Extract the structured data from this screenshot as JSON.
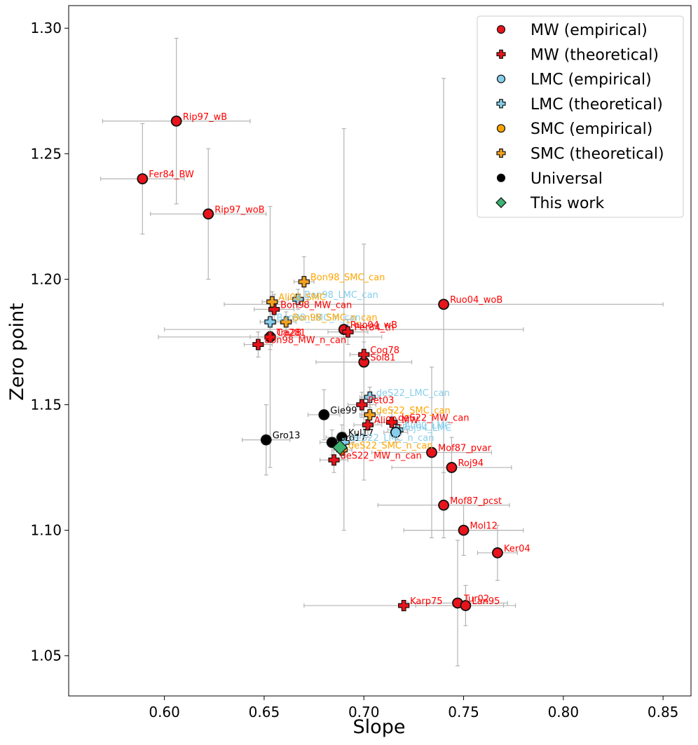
{
  "chart_data": {
    "type": "scatter",
    "xlabel": "Slope",
    "ylabel": "Zero point",
    "xlim": [
      0.552,
      0.864
    ],
    "ylim": [
      1.034,
      1.309
    ],
    "xticks": [
      0.6,
      0.65,
      0.7,
      0.75,
      0.8,
      0.85
    ],
    "xtick_labels": [
      "0.60",
      "0.65",
      "0.70",
      "0.75",
      "0.80",
      "0.85"
    ],
    "yticks": [
      1.05,
      1.1,
      1.15,
      1.2,
      1.25,
      1.3
    ],
    "ytick_labels": [
      "1.05",
      "1.10",
      "1.15",
      "1.20",
      "1.25",
      "1.30"
    ],
    "grid": false,
    "legend_position": "top-right",
    "legend": [
      {
        "label": "MW (empirical)",
        "series": "mw_emp"
      },
      {
        "label": "MW (theoretical)",
        "series": "mw_theo"
      },
      {
        "label": "LMC (empirical)",
        "series": "lmc_emp"
      },
      {
        "label": "LMC (theoretical)",
        "series": "lmc_theo"
      },
      {
        "label": "SMC (empirical)",
        "series": "smc_emp"
      },
      {
        "label": "SMC (theoretical)",
        "series": "smc_theo"
      },
      {
        "label": "Universal",
        "series": "universal"
      },
      {
        "label": "This work",
        "series": "this_work"
      }
    ],
    "styles": {
      "mw_emp": {
        "marker": "circle",
        "fill": "#e8141b",
        "label_color": "#ff0000"
      },
      "mw_theo": {
        "marker": "plus",
        "fill": "#e8141b",
        "label_color": "#ff0000"
      },
      "lmc_emp": {
        "marker": "circle",
        "fill": "#87ceeb",
        "label_color": "#87ceeb"
      },
      "lmc_theo": {
        "marker": "plus",
        "fill": "#87ceeb",
        "label_color": "#87ceeb"
      },
      "smc_emp": {
        "marker": "circle",
        "fill": "#ffa500",
        "label_color": "#ffa500"
      },
      "smc_theo": {
        "marker": "plus",
        "fill": "#f0a020",
        "label_color": "#ffa500"
      },
      "universal": {
        "marker": "circle",
        "fill": "#000000",
        "label_color": "#000000"
      },
      "this_work": {
        "marker": "diamond",
        "fill": "#3cb371",
        "label_color": "#3cb371"
      }
    },
    "points": [
      {
        "label": "Rip97_wB",
        "series": "mw_emp",
        "x": 0.606,
        "y": 1.263,
        "xerr": 0.037,
        "yerr": 0.033
      },
      {
        "label": "Fer84_BW",
        "series": "mw_emp",
        "x": 0.589,
        "y": 1.24,
        "xerr": 0.021,
        "yerr": 0.022
      },
      {
        "label": "Rip97_woB",
        "series": "mw_emp",
        "x": 0.622,
        "y": 1.226,
        "xerr": 0.029,
        "yerr": 0.026
      },
      {
        "label": "Ruo04_woB",
        "series": "mw_emp",
        "x": 0.74,
        "y": 1.19,
        "xerr": 0.11,
        "yerr": 0.09
      },
      {
        "label": "Ruo04_wB",
        "series": "mw_emp",
        "x": 0.69,
        "y": 1.18,
        "xerr": 0.09,
        "yerr": 0.08
      },
      {
        "label": "Ca281",
        "series": "mw_emp",
        "x": 0.653,
        "y": 1.177,
        "xerr": 0.056,
        "yerr": 0.052
      },
      {
        "label": "Sol81",
        "series": "mw_emp",
        "x": 0.7,
        "y": 1.167,
        "xerr": 0.024,
        "yerr": 0.047
      },
      {
        "label": "Mof87_pvar",
        "series": "mw_emp",
        "x": 0.734,
        "y": 1.131,
        "xerr": 0.03,
        "yerr": 0.034
      },
      {
        "label": "Roj94",
        "series": "mw_emp",
        "x": 0.744,
        "y": 1.125,
        "xerr": 0.03,
        "yerr": 0.012
      },
      {
        "label": "Mof87_pcst",
        "series": "mw_emp",
        "x": 0.74,
        "y": 1.11,
        "xerr": 0.033,
        "yerr": 0.013
      },
      {
        "label": "Mol12",
        "series": "mw_emp",
        "x": 0.75,
        "y": 1.1,
        "xerr": 0.03,
        "yerr": 0.01
      },
      {
        "label": "Ker04",
        "series": "mw_emp",
        "x": 0.767,
        "y": 1.091,
        "xerr": 0.01,
        "yerr": 0.011
      },
      {
        "label": "Tur02",
        "series": "mw_emp",
        "x": 0.747,
        "y": 1.071,
        "xerr": 0.025,
        "yerr": 0.025
      },
      {
        "label": "Lan95",
        "series": "mw_emp",
        "x": 0.751,
        "y": 1.07,
        "xerr": 0.025,
        "yerr": 0.008
      },
      {
        "label": "Bon98_MW_can",
        "series": "mw_theo",
        "x": 0.655,
        "y": 1.188,
        "xerr": 0.01,
        "yerr": 0.006
      },
      {
        "label": "Tra28",
        "series": "mw_theo",
        "x": 0.653,
        "y": 1.177,
        "xerr": 0.01,
        "yerr": 0.005
      },
      {
        "label": "Bon98_MW_n_can",
        "series": "mw_theo",
        "x": 0.647,
        "y": 1.174,
        "xerr": 0.007,
        "yerr": 0.005
      },
      {
        "label": "Per84_th",
        "series": "mw_theo",
        "x": 0.692,
        "y": 1.179,
        "xerr": 0.01,
        "yerr": 0.005
      },
      {
        "label": "Cog78",
        "series": "mw_theo",
        "x": 0.7,
        "y": 1.17,
        "xerr": 0.007,
        "yerr": 0.005
      },
      {
        "label": "Pet03",
        "series": "mw_theo",
        "x": 0.699,
        "y": 1.15,
        "xerr": 0.007,
        "yerr": 0.005
      },
      {
        "label": "deS22_MW_can",
        "series": "mw_theo",
        "x": 0.714,
        "y": 1.143,
        "xerr": 0.007,
        "yerr": 0.005
      },
      {
        "label": "Ali00_MW",
        "series": "mw_theo",
        "x": 0.702,
        "y": 1.142,
        "xerr": 0.007,
        "yerr": 0.005
      },
      {
        "label": "deS22_MW_n_can",
        "series": "mw_theo",
        "x": 0.685,
        "y": 1.128,
        "xerr": 0.007,
        "yerr": 0.005
      },
      {
        "label": "Karp75",
        "series": "mw_theo",
        "x": 0.72,
        "y": 1.07,
        "xerr": 0.05,
        "yerr": 0.0
      },
      {
        "label": "Gro13",
        "series": "universal",
        "x": 0.651,
        "y": 1.136,
        "xerr": 0.012,
        "yerr": 0.014
      },
      {
        "label": "Gie99",
        "series": "universal",
        "x": 0.68,
        "y": 1.146,
        "xerr": 0.008,
        "yerr": 0.01
      },
      {
        "label": "Gro17",
        "series": "universal",
        "x": 0.684,
        "y": 1.135,
        "xerr": 0.006,
        "yerr": 0.005
      },
      {
        "label": "Kul17",
        "series": "universal",
        "x": 0.689,
        "y": 1.137,
        "xerr": 0.008,
        "yerr": 0.005
      },
      {
        "label": "Bon98_LMC_can",
        "series": "lmc_theo",
        "x": 0.667,
        "y": 1.192,
        "xerr": 0.005,
        "yerr": 0.004
      },
      {
        "label": "Bon98_LMC_n_can",
        "series": "lmc_theo",
        "x": 0.653,
        "y": 1.183,
        "xerr": 0.005,
        "yerr": 0.004
      },
      {
        "label": "deS22_LMC_can",
        "series": "lmc_theo",
        "x": 0.703,
        "y": 1.153,
        "xerr": 0.005,
        "yerr": 0.004
      },
      {
        "label": "deS22_LMC_n_can",
        "series": "lmc_theo",
        "x": 0.69,
        "y": 1.135,
        "xerr": 0.005,
        "yerr": 0.004
      },
      {
        "label": "Ali00_LMC",
        "series": "lmc_theo",
        "x": 0.717,
        "y": 1.14,
        "xerr": 0.005,
        "yerr": 0.004
      },
      {
        "label": "Roj94_LMC",
        "series": "lmc_emp",
        "x": 0.716,
        "y": 1.139,
        "xerr": 0.006,
        "yerr": 0.004
      },
      {
        "label": "Bon98_SMC_can",
        "series": "smc_theo",
        "x": 0.67,
        "y": 1.199,
        "xerr": 0.005,
        "yerr": 0.01
      },
      {
        "label": "Ali00_SMC",
        "series": "smc_theo",
        "x": 0.654,
        "y": 1.191,
        "xerr": 0.005,
        "yerr": 0.004
      },
      {
        "label": "Bon98_SMC_n_can",
        "series": "smc_theo",
        "x": 0.661,
        "y": 1.183,
        "xerr": 0.005,
        "yerr": 0.004
      },
      {
        "label": "deS22_SMC_can",
        "series": "smc_theo",
        "x": 0.703,
        "y": 1.146,
        "xerr": 0.005,
        "yerr": 0.004
      },
      {
        "label": "deS22_SMC_n_can",
        "series": "smc_theo",
        "x": 0.689,
        "y": 1.132,
        "xerr": 0.005,
        "yerr": 0.004
      },
      {
        "label": "",
        "series": "this_work",
        "x": 0.688,
        "y": 1.133,
        "xerr": 0.0,
        "yerr": 0.0
      }
    ]
  }
}
